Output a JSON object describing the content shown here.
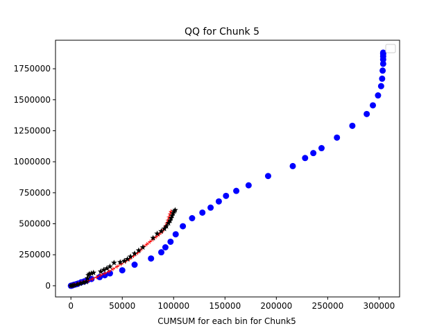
{
  "chart_data": {
    "type": "scatter",
    "title": "QQ for Chunk 5",
    "xlabel": "CUMSUM for each bin for Chunk5",
    "ylabel": "",
    "xlim": [
      -15000,
      320000
    ],
    "ylim": [
      -90000,
      1980000
    ],
    "x_ticks": [
      0,
      50000,
      100000,
      150000,
      200000,
      250000,
      300000
    ],
    "y_ticks": [
      0,
      250000,
      500000,
      750000,
      1000000,
      1250000,
      1500000,
      1750000
    ],
    "legend": {
      "location": "upper right",
      "entries": []
    },
    "grid": false,
    "series": [
      {
        "marker": "o",
        "color": "#0000ff",
        "points": [
          [
            0,
            0
          ],
          [
            500,
            1000
          ],
          [
            1500,
            3000
          ],
          [
            3000,
            8000
          ],
          [
            5000,
            12000
          ],
          [
            7000,
            18000
          ],
          [
            10000,
            28000
          ],
          [
            13000,
            35000
          ],
          [
            16000,
            45000
          ],
          [
            20000,
            55000
          ],
          [
            28000,
            70000
          ],
          [
            33000,
            85000
          ],
          [
            38000,
            100000
          ],
          [
            50000,
            125000
          ],
          [
            62000,
            170000
          ],
          [
            78000,
            220000
          ],
          [
            88000,
            270000
          ],
          [
            92000,
            310000
          ],
          [
            97000,
            355000
          ],
          [
            102000,
            415000
          ],
          [
            109000,
            480000
          ],
          [
            118000,
            545000
          ],
          [
            128000,
            590000
          ],
          [
            136000,
            630000
          ],
          [
            144000,
            680000
          ],
          [
            151000,
            725000
          ],
          [
            161000,
            765000
          ],
          [
            173000,
            810000
          ],
          [
            192000,
            885000
          ],
          [
            216000,
            965000
          ],
          [
            228000,
            1030000
          ],
          [
            236000,
            1070000
          ],
          [
            244000,
            1110000
          ],
          [
            259000,
            1195000
          ],
          [
            274000,
            1290000
          ],
          [
            288000,
            1385000
          ],
          [
            294000,
            1455000
          ],
          [
            299000,
            1535000
          ],
          [
            302000,
            1610000
          ],
          [
            303000,
            1670000
          ],
          [
            303500,
            1735000
          ],
          [
            304000,
            1790000
          ],
          [
            304000,
            1825000
          ],
          [
            304000,
            1850000
          ],
          [
            304000,
            1870000
          ],
          [
            304000,
            1880000
          ]
        ]
      },
      {
        "marker": "+",
        "color": "#ff0000",
        "points": [
          [
            0,
            0
          ],
          [
            2000,
            3000
          ],
          [
            4000,
            8000
          ],
          [
            7000,
            15000
          ],
          [
            10000,
            25000
          ],
          [
            13000,
            33000
          ],
          [
            17000,
            42000
          ],
          [
            21000,
            55000
          ],
          [
            25000,
            70000
          ],
          [
            29000,
            85000
          ],
          [
            33000,
            100000
          ],
          [
            37000,
            115000
          ],
          [
            41000,
            135000
          ],
          [
            45000,
            155000
          ],
          [
            49000,
            175000
          ],
          [
            53000,
            195000
          ],
          [
            57000,
            215000
          ],
          [
            61000,
            240000
          ],
          [
            65000,
            265000
          ],
          [
            68000,
            290000
          ],
          [
            71000,
            315000
          ],
          [
            74000,
            335000
          ],
          [
            77000,
            355000
          ],
          [
            80000,
            375000
          ],
          [
            83000,
            395000
          ],
          [
            86000,
            415000
          ],
          [
            88500,
            435000
          ],
          [
            90500,
            455000
          ],
          [
            92000,
            480000
          ],
          [
            93500,
            505000
          ],
          [
            94500,
            530000
          ],
          [
            95500,
            555000
          ],
          [
            96500,
            580000
          ],
          [
            97500,
            600000
          ]
        ]
      },
      {
        "marker": "*",
        "color": "#000000",
        "points": [
          [
            0,
            0
          ],
          [
            1500,
            2000
          ],
          [
            3000,
            5000
          ],
          [
            6000,
            10000
          ],
          [
            9000,
            18000
          ],
          [
            12000,
            25000
          ],
          [
            15000,
            32000
          ],
          [
            16000,
            60000
          ],
          [
            17000,
            85000
          ],
          [
            18000,
            95000
          ],
          [
            20000,
            100000
          ],
          [
            22000,
            105000
          ],
          [
            29000,
            115000
          ],
          [
            32000,
            128000
          ],
          [
            35000,
            140000
          ],
          [
            38000,
            155000
          ],
          [
            42000,
            185000
          ],
          [
            48000,
            190000
          ],
          [
            52000,
            200000
          ],
          [
            55000,
            215000
          ],
          [
            58000,
            235000
          ],
          [
            62000,
            260000
          ],
          [
            66000,
            285000
          ],
          [
            70000,
            310000
          ],
          [
            80000,
            385000
          ],
          [
            84000,
            420000
          ],
          [
            88000,
            440000
          ],
          [
            91000,
            460000
          ],
          [
            93000,
            480000
          ],
          [
            95000,
            505000
          ],
          [
            96500,
            525000
          ],
          [
            97500,
            545000
          ],
          [
            98500,
            565000
          ],
          [
            99500,
            585000
          ],
          [
            100500,
            600000
          ],
          [
            101500,
            610000
          ]
        ]
      }
    ]
  }
}
